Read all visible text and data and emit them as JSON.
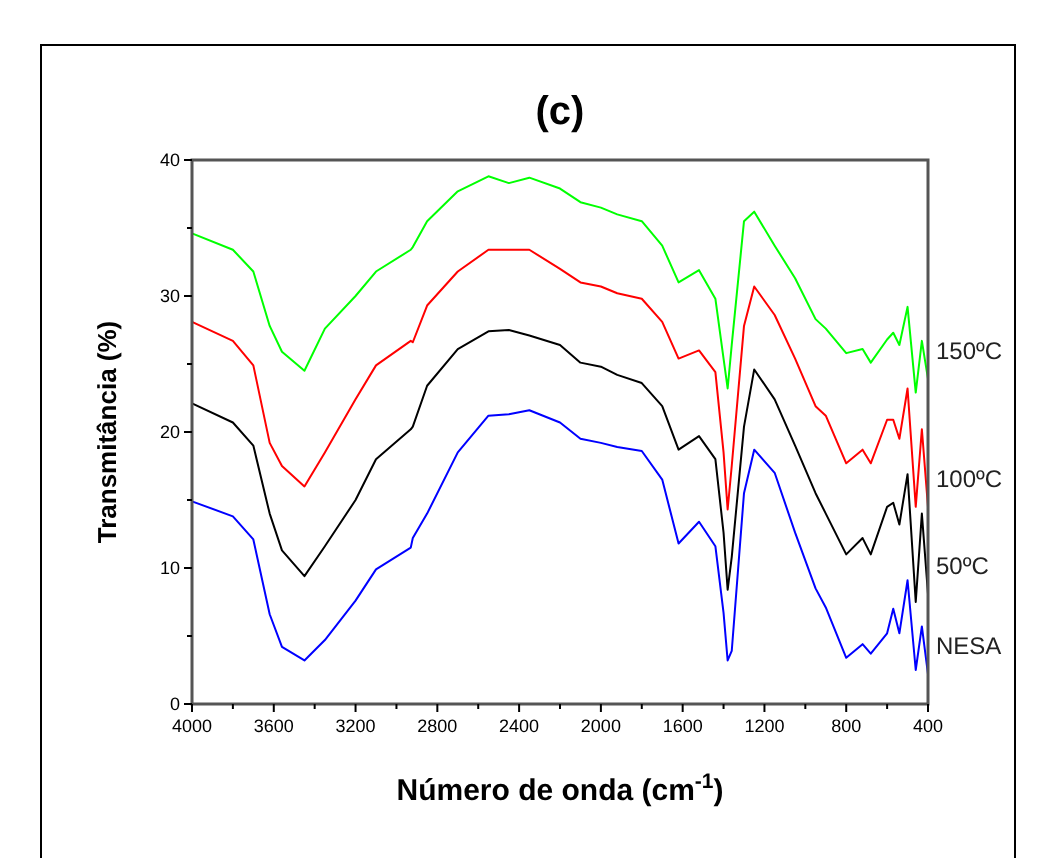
{
  "chart_data": {
    "type": "line",
    "title": "(c)",
    "xlabel": "Número de onda (cm$^{-1}$)",
    "ylabel": "Transmitância (%)",
    "xlim": [
      4000,
      400
    ],
    "ylim": [
      0,
      40
    ],
    "xticks": [
      4000,
      {
        "value": 3800,
        "label": null
      },
      3600,
      {
        "value": 3400,
        "label": null
      },
      3200,
      {
        "value": 3000,
        "label": null
      },
      2800,
      {
        "value": 2600,
        "label": null
      },
      2400,
      {
        "value": 2200,
        "label": null
      },
      2000,
      {
        "value": 1800,
        "label": null
      },
      1600,
      {
        "value": 1400,
        "label": null
      },
      1200,
      {
        "value": 1000,
        "label": null
      },
      800,
      {
        "value": 600,
        "label": null
      },
      400
    ],
    "yticks": [
      0,
      {
        "value": 5,
        "label": null
      },
      10,
      {
        "value": 15,
        "label": null
      },
      20,
      {
        "value": 25,
        "label": null
      },
      30,
      {
        "value": 35,
        "label": null
      },
      40
    ],
    "grid": false,
    "line_style": "solid",
    "x": [
      4000,
      3800,
      3700,
      3620,
      3560,
      3450,
      3350,
      3200,
      3100,
      2930,
      2920,
      2850,
      2700,
      2550,
      2450,
      2350,
      2200,
      2100,
      2000,
      1920,
      1800,
      1700,
      1620,
      1520,
      1440,
      1400,
      1380,
      1360,
      1300,
      1250,
      1150,
      1050,
      950,
      900,
      800,
      720,
      680,
      600,
      570,
      540,
      500,
      460,
      430,
      400
    ],
    "series": [
      {
        "name": "NESA",
        "color": "#0000ff",
        "values": [
          14.9,
          13.8,
          12.1,
          6.6,
          4.2,
          3.2,
          4.7,
          7.6,
          9.9,
          11.5,
          12.2,
          14.0,
          18.5,
          21.2,
          21.3,
          21.6,
          20.7,
          19.5,
          19.2,
          18.9,
          18.6,
          16.5,
          11.8,
          13.4,
          11.6,
          6.7,
          3.2,
          3.9,
          15.5,
          18.7,
          17.0,
          12.6,
          8.5,
          7.1,
          3.4,
          4.4,
          3.7,
          5.2,
          7.0,
          5.2,
          9.1,
          2.5,
          5.7,
          2.2
        ]
      },
      {
        "name": "50ºC",
        "color": "#000000",
        "values": [
          22.1,
          20.7,
          19.0,
          14.0,
          11.3,
          9.4,
          11.6,
          15.0,
          18.0,
          20.2,
          20.4,
          23.4,
          26.1,
          27.4,
          27.5,
          27.1,
          26.4,
          25.1,
          24.8,
          24.2,
          23.6,
          21.9,
          18.7,
          19.7,
          18.0,
          12.6,
          8.4,
          10.8,
          20.4,
          24.6,
          22.4,
          19.0,
          15.5,
          14.0,
          11.0,
          12.2,
          11.0,
          14.5,
          14.8,
          13.2,
          16.9,
          7.5,
          14.0,
          8.1
        ]
      },
      {
        "name": "100ºC",
        "color": "#ff0000",
        "values": [
          28.1,
          26.7,
          24.9,
          19.2,
          17.5,
          16.0,
          18.5,
          22.4,
          24.9,
          26.7,
          26.6,
          29.3,
          31.8,
          33.4,
          33.4,
          33.4,
          32.0,
          31.0,
          30.7,
          30.2,
          29.8,
          28.1,
          25.4,
          26.0,
          24.4,
          18.5,
          14.3,
          17.5,
          27.8,
          30.7,
          28.6,
          25.4,
          21.9,
          21.2,
          17.7,
          18.7,
          17.7,
          20.9,
          20.9,
          19.5,
          23.2,
          14.5,
          20.2,
          14.5
        ]
      },
      {
        "name": "150ºC",
        "color": "#00ff00",
        "values": [
          34.6,
          33.4,
          31.8,
          27.8,
          25.9,
          24.5,
          27.6,
          30.0,
          31.8,
          33.4,
          33.6,
          35.5,
          37.7,
          38.8,
          38.3,
          38.7,
          37.9,
          36.9,
          36.5,
          36.0,
          35.5,
          33.7,
          31.0,
          31.9,
          29.8,
          25.4,
          23.2,
          26.4,
          35.5,
          36.2,
          33.7,
          31.3,
          28.3,
          27.6,
          25.8,
          26.1,
          25.1,
          26.8,
          27.3,
          26.4,
          29.2,
          22.9,
          26.7,
          23.9
        ]
      }
    ]
  }
}
